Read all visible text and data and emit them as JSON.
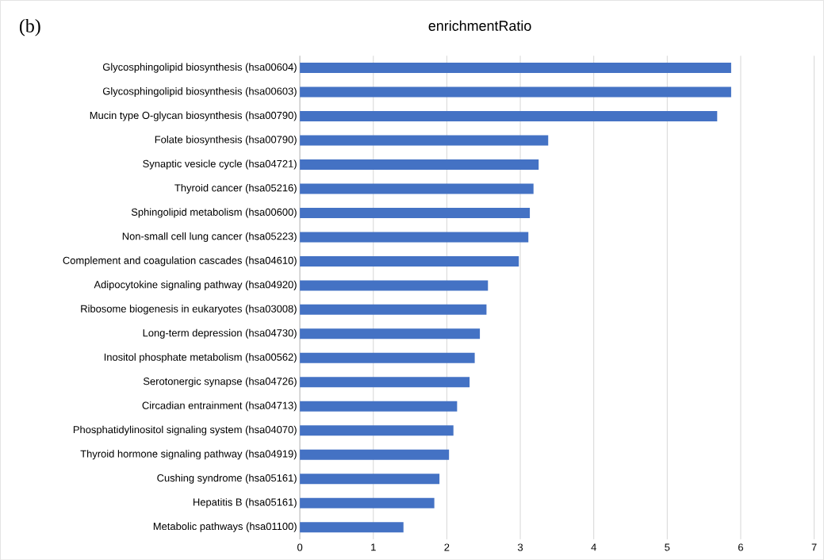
{
  "chart_data": {
    "type": "bar",
    "orientation": "horizontal",
    "title": "enrichmentRatio",
    "annotations": [
      "(b)"
    ],
    "categories": [
      "Glycosphingolipid biosynthesis (hsa00604)",
      "Glycosphingolipid biosynthesis (hsa00603)",
      "Mucin type O-glycan biosynthesis (hsa00790)",
      "Folate biosynthesis (hsa00790)",
      "Synaptic vesicle cycle (hsa04721)",
      "Thyroid cancer (hsa05216)",
      "Sphingolipid metabolism (hsa00600)",
      "Non-small cell lung cancer (hsa05223)",
      "Complement and coagulation cascades (hsa04610)",
      "Adipocytokine signaling pathway (hsa04920)",
      "Ribosome biogenesis in eukaryotes (hsa03008)",
      "Long-term depression (hsa04730)",
      "Inositol phosphate metabolism (hsa00562)",
      "Serotonergic synapse (hsa04726)",
      "Circadian entrainment (hsa04713)",
      "Phosphatidylinositol signaling system (hsa04070)",
      "Thyroid hormone signaling pathway (hsa04919)",
      "Cushing syndrome (hsa05161)",
      "Hepatitis B (hsa05161)",
      "Metabolic pathways (hsa01100)"
    ],
    "values": [
      5.87,
      5.87,
      5.68,
      3.38,
      3.25,
      3.18,
      3.13,
      3.11,
      2.98,
      2.56,
      2.54,
      2.45,
      2.38,
      2.31,
      2.14,
      2.09,
      2.03,
      1.9,
      1.83,
      1.41
    ],
    "color": "#4472c4",
    "xlim": [
      0,
      7
    ],
    "xticks": [
      0,
      1,
      2,
      3,
      4,
      5,
      6,
      7
    ],
    "grid": "x"
  }
}
